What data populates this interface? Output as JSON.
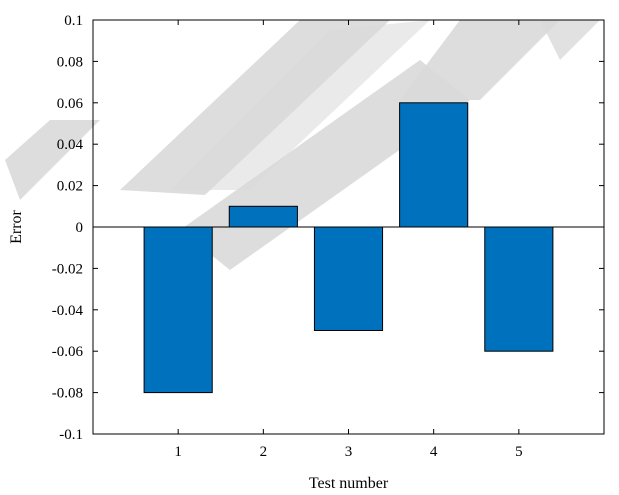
{
  "chart_data": {
    "type": "bar",
    "title": "",
    "xlabel": "Test number",
    "ylabel": "Error",
    "categories": [
      "1",
      "2",
      "3",
      "4",
      "5"
    ],
    "values": [
      -0.08,
      0.01,
      -0.05,
      0.06,
      -0.06
    ],
    "xlim": [
      0,
      6
    ],
    "ylim": [
      -0.1,
      0.1
    ],
    "yticks": [
      -0.1,
      -0.08,
      -0.06,
      -0.04,
      -0.02,
      0,
      0.02,
      0.04,
      0.06,
      0.08,
      0.1
    ],
    "ytick_labels": [
      "-0.1",
      "-0.08",
      "-0.06",
      "-0.04",
      "-0.02",
      "0",
      "0.02",
      "0.04",
      "0.06",
      "0.08",
      "0.1"
    ],
    "grid": false,
    "legend": "none",
    "bar_color": "#0072bd",
    "bar_edge_color": "#000000"
  },
  "watermark": {
    "text": "RETRACTED",
    "color": "#d9d9d9"
  }
}
